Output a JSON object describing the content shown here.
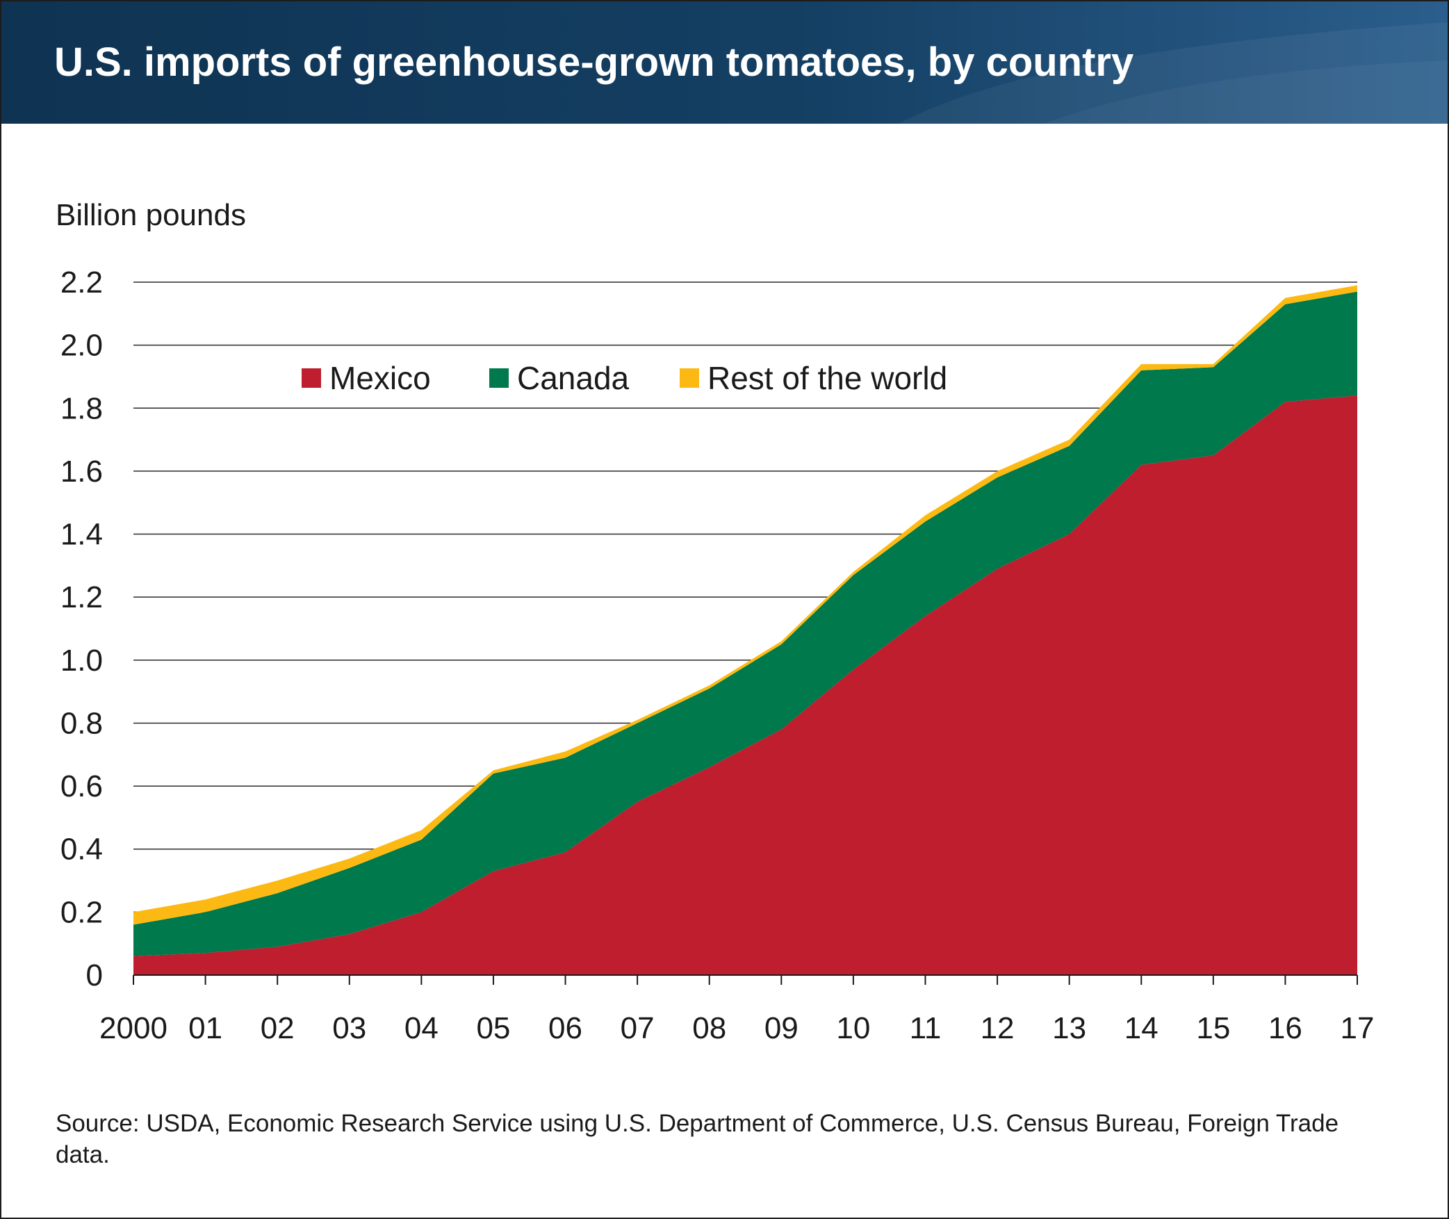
{
  "chart_data": {
    "type": "area",
    "stacked": true,
    "title": "U.S. imports of greenhouse-grown tomatoes, by country",
    "ylabel": "Billion pounds",
    "xlabel": "",
    "ylim": [
      0,
      2.2
    ],
    "yticks": [
      "0",
      "0.2",
      "0.4",
      "0.6",
      "0.8",
      "1.0",
      "1.2",
      "1.4",
      "1.6",
      "1.8",
      "2.0",
      "2.2"
    ],
    "categories": [
      "2000",
      "01",
      "02",
      "03",
      "04",
      "05",
      "06",
      "07",
      "08",
      "09",
      "10",
      "11",
      "12",
      "13",
      "14",
      "15",
      "16",
      "17"
    ],
    "grid": true,
    "legend_position": "top-left",
    "series": [
      {
        "name": "Mexico",
        "color": "#be1e2d",
        "values": [
          0.06,
          0.07,
          0.09,
          0.13,
          0.2,
          0.33,
          0.39,
          0.55,
          0.66,
          0.78,
          0.97,
          1.14,
          1.29,
          1.4,
          1.62,
          1.65,
          1.82,
          1.84
        ]
      },
      {
        "name": "Canada",
        "color": "#00794c",
        "values": [
          0.1,
          0.13,
          0.17,
          0.21,
          0.23,
          0.31,
          0.3,
          0.25,
          0.25,
          0.27,
          0.3,
          0.3,
          0.29,
          0.28,
          0.3,
          0.28,
          0.31,
          0.33
        ]
      },
      {
        "name": "Rest of the world",
        "color": "#fdb913",
        "values": [
          0.04,
          0.04,
          0.04,
          0.03,
          0.03,
          0.01,
          0.02,
          0.01,
          0.01,
          0.01,
          0.01,
          0.02,
          0.02,
          0.02,
          0.02,
          0.01,
          0.02,
          0.02
        ]
      }
    ],
    "source": "Source: USDA, Economic Research Service using U.S. Department of Commerce, U.S. Census Bureau, Foreign Trade data."
  }
}
